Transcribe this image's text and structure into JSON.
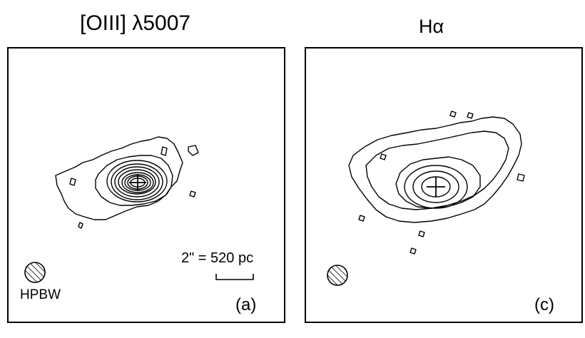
{
  "figure": {
    "panel_a": {
      "title": "[OIII] λ5007",
      "label": "(a)",
      "beam_label": "HPBW",
      "scale_label": "2\" = 520 pc"
    },
    "panel_c": {
      "title": "Hα",
      "label": "(c)"
    }
  },
  "colors": {
    "ink": "#000000",
    "background": "#ffffff"
  }
}
